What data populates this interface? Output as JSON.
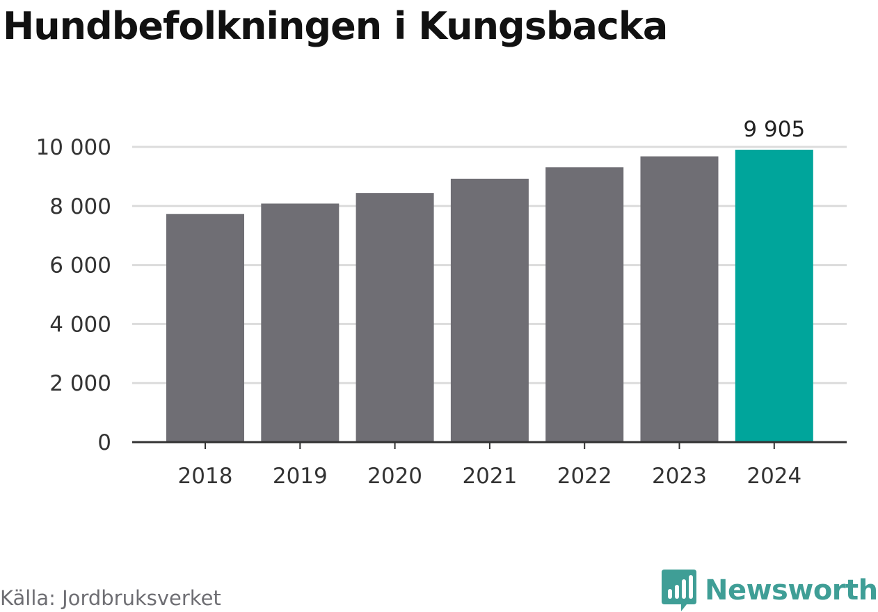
{
  "title": "Hundbefolkningen i Kungsbacka",
  "source": "Källa: Jordbruksverket",
  "brand": {
    "name": "Newsworthy",
    "icon": "newsworthy-logo-icon",
    "color": "#3f9e96"
  },
  "chart_data": {
    "type": "bar",
    "title": "Hundbefolkningen i Kungsbacka",
    "categories": [
      "2018",
      "2019",
      "2020",
      "2021",
      "2022",
      "2023",
      "2024"
    ],
    "values": [
      7730,
      8080,
      8440,
      8920,
      9310,
      9680,
      9905
    ],
    "highlight_index": 6,
    "highlight_label": "9 905",
    "ylim": [
      0,
      10000
    ],
    "yticks": [
      0,
      2000,
      4000,
      6000,
      8000,
      10000
    ],
    "ytick_labels": [
      "0",
      "2 000",
      "4 000",
      "6 000",
      "8 000",
      "10 000"
    ],
    "xlabel": "",
    "ylabel": "",
    "grid": true,
    "colors": {
      "bar": "#6f6e74",
      "highlight": "#00a59b",
      "grid": "#dcdcdc",
      "axis": "#333333",
      "text": "#333333"
    }
  }
}
